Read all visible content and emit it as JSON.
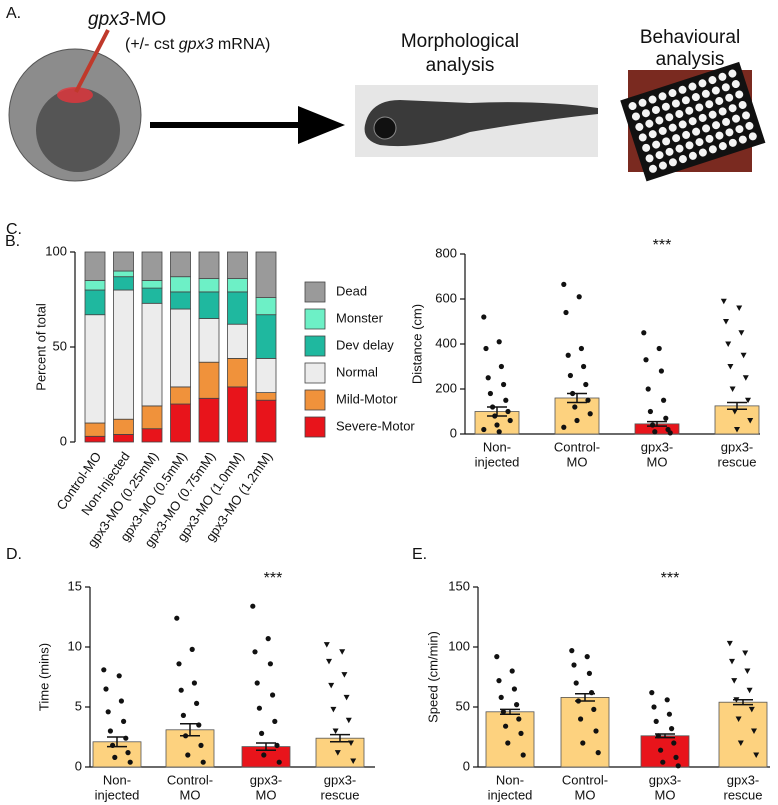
{
  "panel_a": {
    "label": "A.",
    "injection": [
      "gpx3",
      "-MO"
    ],
    "rescue": [
      "(+/- cst ",
      "gpx3",
      " mRNA)"
    ],
    "morphology": [
      "Morphological",
      "analysis"
    ],
    "behaviour": [
      "Behavioural",
      "analysis"
    ]
  },
  "chart_data": [
    {
      "type": "stacked_bar",
      "panel_label": "B.",
      "ylabel": "Percent of total",
      "ylim": [
        0,
        100
      ],
      "yticks": [
        0,
        50,
        100
      ],
      "categories": [
        "Control-MO",
        "Non-Injected",
        "gpx3-MO (0.25mM)",
        "gpx3-MO (0.5mM)",
        "gpx3-MO (0.75mM)",
        "gpx3-MO (1.0mM)",
        "gpx3-MO (1.2mM)"
      ],
      "series": [
        {
          "name": "Severe-Motor",
          "color": "#e8141b",
          "values": [
            3,
            4,
            7,
            20,
            23,
            29,
            22
          ]
        },
        {
          "name": "Mild-Motor",
          "color": "#f0923b",
          "values": [
            7,
            8,
            12,
            9,
            19,
            15,
            4
          ]
        },
        {
          "name": "Normal",
          "color": "#ececec",
          "values": [
            57,
            68,
            54,
            41,
            23,
            18,
            18
          ]
        },
        {
          "name": "Dev delay",
          "color": "#1fb89f",
          "values": [
            13,
            7,
            8,
            9,
            14,
            17,
            23
          ]
        },
        {
          "name": "Monster",
          "color": "#6df0c6",
          "values": [
            5,
            3,
            4,
            8,
            7,
            7,
            9
          ]
        },
        {
          "name": "Dead",
          "color": "#9a9a9a",
          "values": [
            15,
            10,
            15,
            13,
            14,
            14,
            24
          ]
        }
      ]
    },
    {
      "type": "bar_scatter",
      "panel_label": "C.",
      "ylabel": "Distance (cm)",
      "annotation": "***",
      "ylim": [
        0,
        800
      ],
      "yticks": [
        0,
        200,
        400,
        600,
        800
      ],
      "groups": [
        {
          "name": [
            "Non-",
            "injected"
          ],
          "mean": 100,
          "error": 20,
          "color": "#fdd27f",
          "marker": "circle",
          "points": [
            520,
            410,
            380,
            300,
            250,
            220,
            180,
            150,
            120,
            100,
            80,
            60,
            40,
            20,
            10
          ]
        },
        {
          "name": [
            "Control-",
            "MO"
          ],
          "mean": 160,
          "error": 20,
          "color": "#fdd27f",
          "marker": "circle",
          "points": [
            665,
            610,
            540,
            380,
            350,
            300,
            260,
            220,
            180,
            150,
            120,
            90,
            60,
            30
          ]
        },
        {
          "name": [
            "gpx3-",
            "MO"
          ],
          "mean": 45,
          "error": 10,
          "color": "#e8141b",
          "marker": "circle",
          "points": [
            450,
            380,
            330,
            280,
            200,
            150,
            100,
            70,
            40,
            20,
            10,
            5
          ]
        },
        {
          "name": [
            "gpx3-",
            "rescue"
          ],
          "mean": 125,
          "error": 15,
          "color": "#fdd27f",
          "marker": "triangle",
          "points": [
            590,
            560,
            500,
            450,
            400,
            350,
            300,
            250,
            200,
            150,
            100,
            60,
            20
          ]
        }
      ]
    },
    {
      "type": "bar_scatter",
      "panel_label": "D.",
      "ylabel": "Time (mins)",
      "annotation": "***",
      "ylim": [
        0,
        15
      ],
      "yticks": [
        0,
        5,
        10,
        15
      ],
      "groups": [
        {
          "name": [
            "Non-",
            "injected"
          ],
          "mean": 2.1,
          "error": 0.4,
          "color": "#fdd27f",
          "marker": "circle",
          "points": [
            8.1,
            7.6,
            6.5,
            5.5,
            4.6,
            3.8,
            3,
            2.4,
            1.8,
            1.2,
            0.8,
            0.4
          ]
        },
        {
          "name": [
            "Control-",
            "MO"
          ],
          "mean": 3.1,
          "error": 0.5,
          "color": "#fdd27f",
          "marker": "circle",
          "points": [
            12.4,
            9.8,
            8.6,
            7,
            6.4,
            5.3,
            4.3,
            3.5,
            2.6,
            1.8,
            1,
            0.4
          ]
        },
        {
          "name": [
            "gpx3-",
            "MO"
          ],
          "mean": 1.7,
          "error": 0.3,
          "color": "#e8141b",
          "marker": "circle",
          "points": [
            13.4,
            10.7,
            9.6,
            8.6,
            7,
            6,
            4.9,
            3.8,
            2.8,
            1.8,
            1,
            0.4
          ]
        },
        {
          "name": [
            "gpx3-",
            "rescue"
          ],
          "mean": 2.4,
          "error": 0.3,
          "color": "#fdd27f",
          "marker": "triangle",
          "points": [
            10.2,
            9.6,
            8.8,
            7.7,
            6.8,
            5.8,
            4.8,
            3.9,
            3,
            2,
            1.2,
            0.5
          ]
        }
      ]
    },
    {
      "type": "bar_scatter",
      "panel_label": "E.",
      "ylabel": "Speed (cm/min)",
      "annotation": "***",
      "ylim": [
        0,
        150
      ],
      "yticks": [
        0,
        50,
        100,
        150
      ],
      "groups": [
        {
          "name": [
            "Non-",
            "injected"
          ],
          "mean": 46,
          "error": 2,
          "color": "#fdd27f",
          "marker": "circle",
          "points": [
            92,
            80,
            72,
            65,
            58,
            52,
            46,
            40,
            34,
            28,
            20,
            10
          ]
        },
        {
          "name": [
            "Control-",
            "MO"
          ],
          "mean": 58,
          "error": 3,
          "color": "#fdd27f",
          "marker": "circle",
          "points": [
            97,
            92,
            85,
            78,
            70,
            62,
            55,
            48,
            40,
            30,
            20,
            12
          ]
        },
        {
          "name": [
            "gpx3-",
            "MO"
          ],
          "mean": 26,
          "error": 1.5,
          "color": "#e8141b",
          "marker": "circle",
          "points": [
            62,
            56,
            50,
            44,
            38,
            32,
            26,
            20,
            14,
            8,
            4,
            1
          ]
        },
        {
          "name": [
            "gpx3-",
            "rescue"
          ],
          "mean": 54,
          "error": 2,
          "color": "#fdd27f",
          "marker": "triangle",
          "points": [
            103,
            95,
            88,
            80,
            72,
            64,
            56,
            48,
            40,
            30,
            20,
            10
          ]
        }
      ]
    }
  ]
}
